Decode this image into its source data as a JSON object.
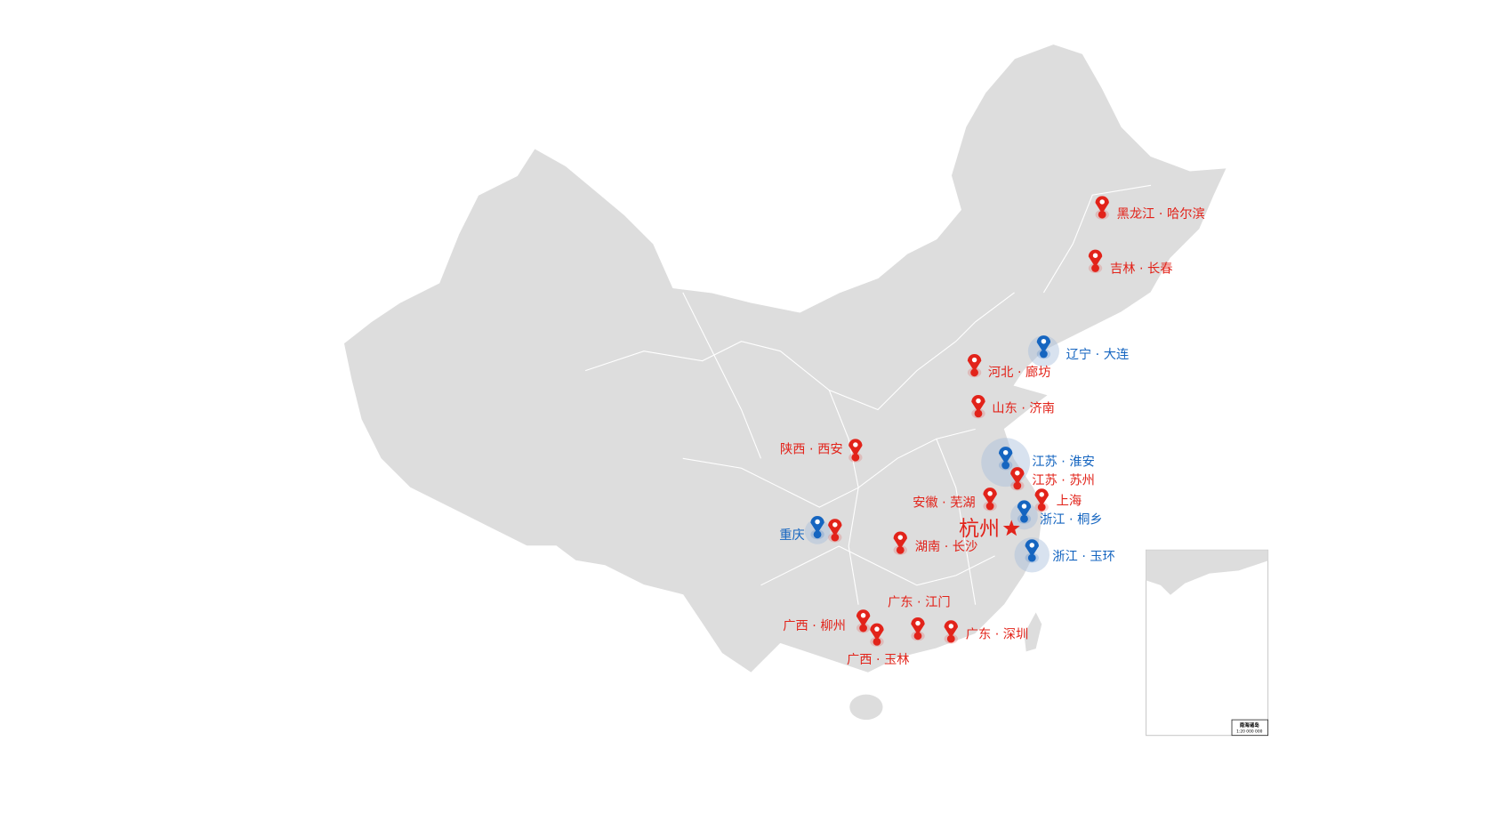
{
  "map": {
    "land_color": "#dddddd",
    "border_color": "#ffffff",
    "colors": {
      "red": "#e2231a",
      "blue": "#1565c0"
    },
    "capital": {
      "label": "杭州",
      "icon": "star-icon",
      "color": "#e2231a"
    },
    "markers": [
      {
        "label": "黑龙江 · 哈尔滨",
        "color": "red"
      },
      {
        "label": "吉林 · 长春",
        "color": "red"
      },
      {
        "label": "辽宁 · 大连",
        "color": "blue"
      },
      {
        "label": "河北 · 廊坊",
        "color": "red"
      },
      {
        "label": "山东 · 济南",
        "color": "red"
      },
      {
        "label": "陕西 · 西安",
        "color": "red"
      },
      {
        "label": "江苏 · 淮安",
        "color": "blue"
      },
      {
        "label": "江苏 · 苏州",
        "color": "red"
      },
      {
        "label": "上海",
        "color": "red"
      },
      {
        "label": "安徽 · 芜湖",
        "color": "red"
      },
      {
        "label": "浙江 · 桐乡",
        "color": "blue"
      },
      {
        "label": "浙江 · 玉环",
        "color": "blue"
      },
      {
        "label": "重庆",
        "color": "blue"
      },
      {
        "label": "",
        "color": "red"
      },
      {
        "label": "湖南 · 长沙",
        "color": "red"
      },
      {
        "label": "广东 · 江门",
        "color": "red"
      },
      {
        "label": "广西 · 柳州",
        "color": "red"
      },
      {
        "label": "广西 · 玉林",
        "color": "red"
      },
      {
        "label": "广东 · 深圳",
        "color": "red"
      }
    ],
    "inset": {
      "title": "南海诸岛",
      "scale": "1:20 000 000"
    }
  }
}
